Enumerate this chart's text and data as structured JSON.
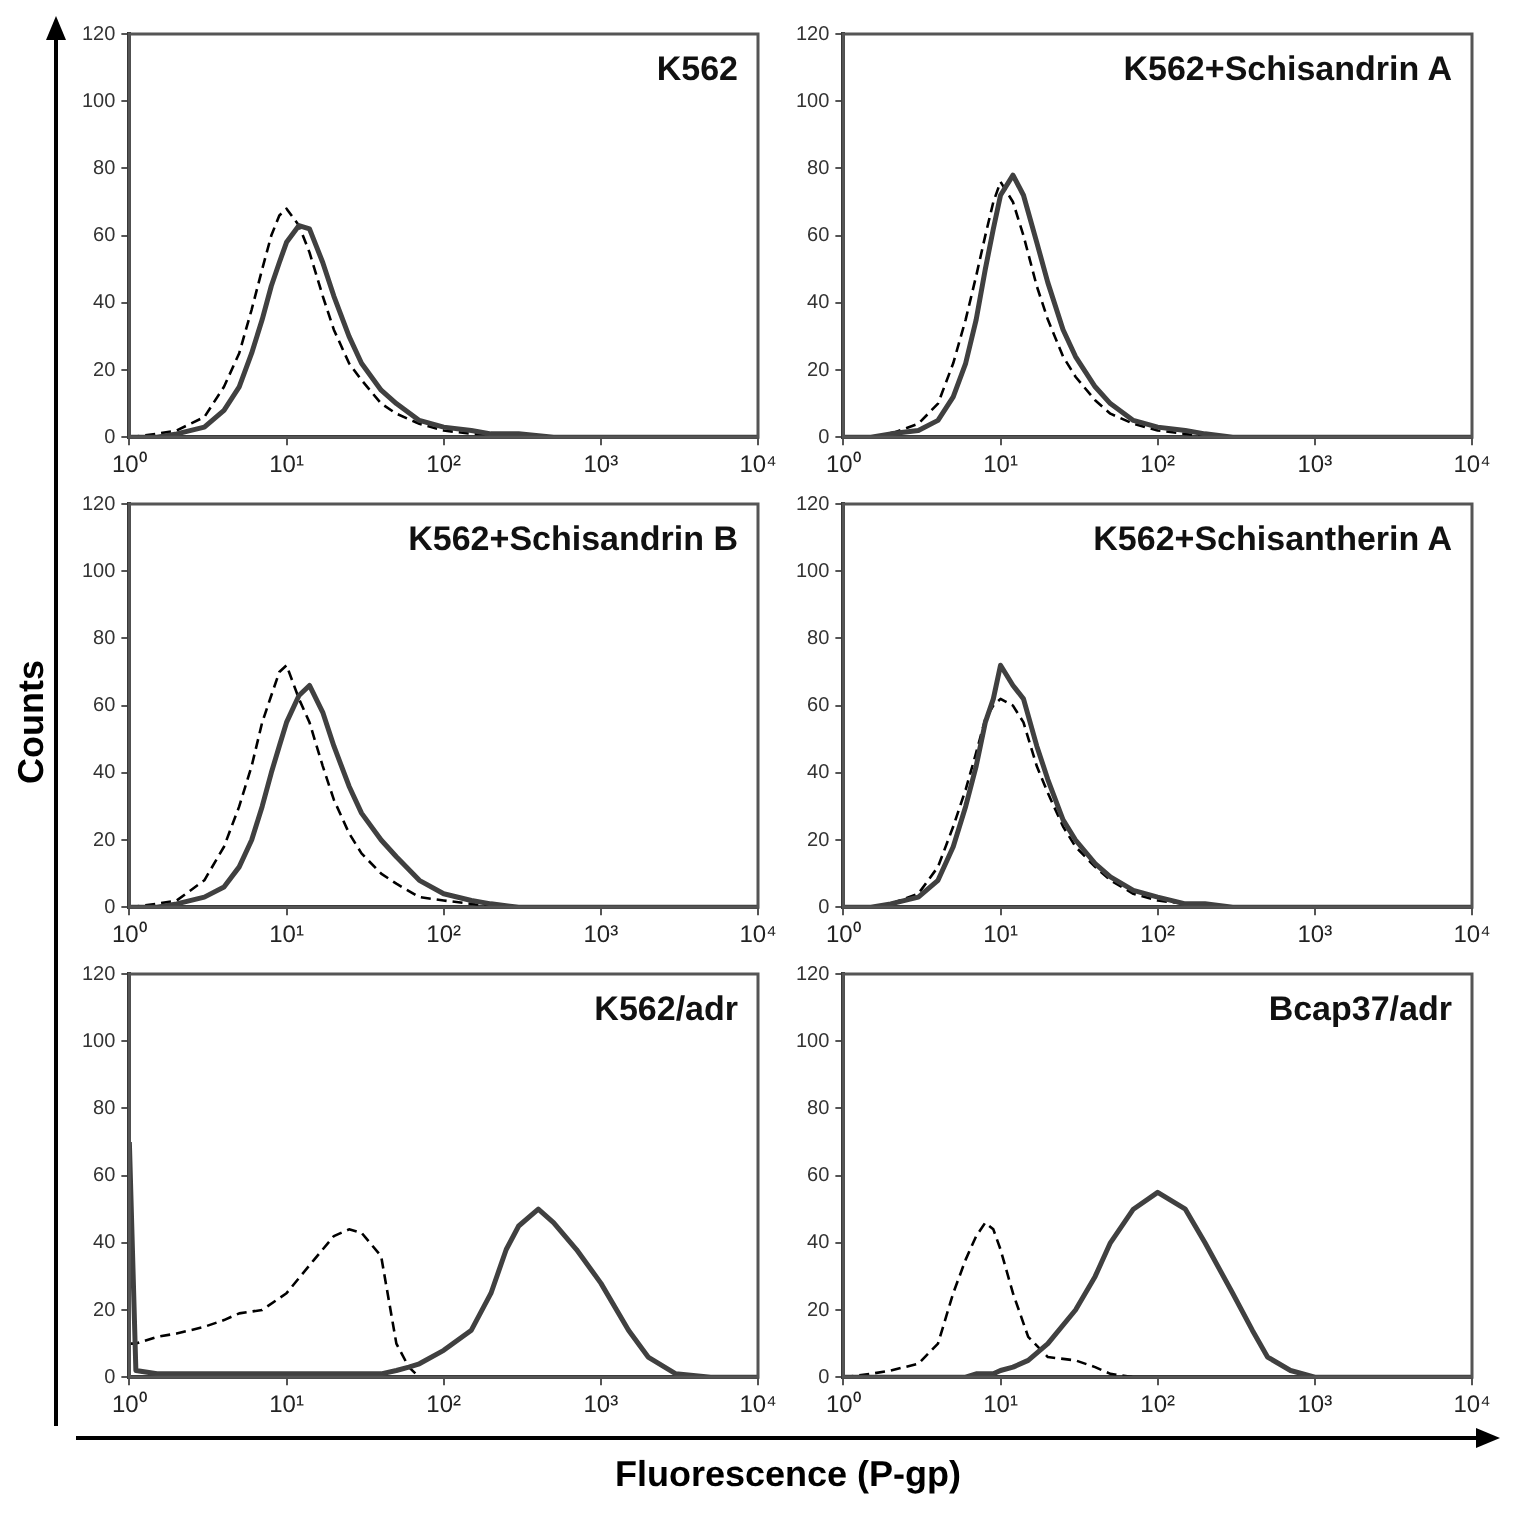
{
  "chart_data": [
    {
      "type": "line",
      "title": "K562",
      "x": [
        1,
        1.5,
        2,
        3,
        4,
        5,
        6,
        7,
        8,
        9,
        10,
        12,
        14,
        17,
        20,
        25,
        30,
        40,
        50,
        70,
        100,
        150,
        200,
        300,
        500,
        1000,
        2000,
        5000,
        10000
      ],
      "series": [
        {
          "color": "#404040",
          "line_style": "solid",
          "values": [
            0,
            0,
            1,
            3,
            8,
            15,
            25,
            35,
            45,
            52,
            58,
            63,
            62,
            52,
            42,
            30,
            22,
            14,
            10,
            5,
            3,
            2,
            1,
            1,
            0,
            0,
            0,
            0,
            0
          ]
        },
        {
          "color": "#000000",
          "line_style": "dashed",
          "values": [
            0,
            1,
            2,
            6,
            15,
            25,
            38,
            50,
            60,
            66,
            68,
            63,
            55,
            42,
            32,
            22,
            17,
            10,
            7,
            4,
            2,
            1,
            1,
            0,
            0,
            0,
            0,
            0,
            0
          ]
        }
      ],
      "xlim": [
        1,
        10000
      ],
      "xticks": [
        {
          "value": 1,
          "label": "10⁰"
        },
        {
          "value": 10,
          "label": "10¹"
        },
        {
          "value": 100,
          "label": "10²"
        },
        {
          "value": 1000,
          "label": "10³"
        },
        {
          "value": 10000,
          "label": "10⁴"
        }
      ],
      "ylim": [
        0,
        120
      ],
      "yticks": [
        0,
        20,
        40,
        60,
        80,
        100,
        120
      ],
      "log": "x",
      "grid": false,
      "legend": false
    },
    {
      "type": "line",
      "title": "K562+Schisandrin A",
      "x": [
        1,
        1.5,
        2,
        3,
        4,
        5,
        6,
        7,
        8,
        9,
        10,
        12,
        14,
        17,
        20,
        25,
        30,
        40,
        50,
        70,
        100,
        150,
        200,
        300,
        500,
        1000,
        2000,
        5000,
        10000
      ],
      "series": [
        {
          "color": "#404040",
          "line_style": "solid",
          "values": [
            0,
            0,
            1,
            2,
            5,
            12,
            22,
            35,
            50,
            62,
            72,
            78,
            72,
            58,
            46,
            32,
            24,
            15,
            10,
            5,
            3,
            2,
            1,
            0,
            0,
            0,
            0,
            0,
            0
          ]
        },
        {
          "color": "#000000",
          "line_style": "dashed",
          "values": [
            0,
            0,
            1,
            4,
            10,
            22,
            35,
            48,
            60,
            70,
            76,
            70,
            60,
            45,
            35,
            24,
            18,
            11,
            7,
            4,
            2,
            1,
            0,
            0,
            0,
            0,
            0,
            0,
            0
          ]
        }
      ],
      "xlim": [
        1,
        10000
      ],
      "xticks": [
        {
          "value": 1,
          "label": "10⁰"
        },
        {
          "value": 10,
          "label": "10¹"
        },
        {
          "value": 100,
          "label": "10²"
        },
        {
          "value": 1000,
          "label": "10³"
        },
        {
          "value": 10000,
          "label": "10⁴"
        }
      ],
      "ylim": [
        0,
        120
      ],
      "yticks": [
        0,
        20,
        40,
        60,
        80,
        100,
        120
      ],
      "log": "x",
      "grid": false,
      "legend": false
    },
    {
      "type": "line",
      "title": "K562+Schisandrin B",
      "ylabel": "Counts",
      "x": [
        1,
        1.5,
        2,
        3,
        4,
        5,
        6,
        7,
        8,
        9,
        10,
        12,
        14,
        17,
        20,
        25,
        30,
        40,
        50,
        70,
        100,
        150,
        200,
        300,
        500,
        1000,
        2000,
        5000,
        10000
      ],
      "series": [
        {
          "color": "#404040",
          "line_style": "solid",
          "values": [
            0,
            0,
            1,
            3,
            6,
            12,
            20,
            30,
            40,
            48,
            55,
            63,
            66,
            58,
            48,
            36,
            28,
            20,
            15,
            8,
            4,
            2,
            1,
            0,
            0,
            0,
            0,
            0,
            0
          ]
        },
        {
          "color": "#000000",
          "line_style": "dashed",
          "values": [
            0,
            1,
            2,
            8,
            18,
            30,
            42,
            55,
            63,
            70,
            72,
            62,
            55,
            42,
            32,
            22,
            16,
            10,
            7,
            3,
            2,
            1,
            0,
            0,
            0,
            0,
            0,
            0,
            0
          ]
        }
      ],
      "xlim": [
        1,
        10000
      ],
      "xticks": [
        {
          "value": 1,
          "label": "10⁰"
        },
        {
          "value": 10,
          "label": "10¹"
        },
        {
          "value": 100,
          "label": "10²"
        },
        {
          "value": 1000,
          "label": "10³"
        },
        {
          "value": 10000,
          "label": "10⁴"
        }
      ],
      "ylim": [
        0,
        120
      ],
      "yticks": [
        0,
        20,
        40,
        60,
        80,
        100,
        120
      ],
      "log": "x",
      "grid": false,
      "legend": false
    },
    {
      "type": "line",
      "title": "K562+Schisantherin A",
      "x": [
        1,
        1.5,
        2,
        3,
        4,
        5,
        6,
        7,
        8,
        9,
        10,
        12,
        14,
        17,
        20,
        25,
        30,
        40,
        50,
        70,
        100,
        150,
        200,
        300,
        500,
        1000,
        2000,
        5000,
        10000
      ],
      "series": [
        {
          "color": "#404040",
          "line_style": "solid",
          "values": [
            0,
            0,
            1,
            3,
            8,
            18,
            30,
            42,
            55,
            62,
            72,
            66,
            62,
            48,
            38,
            26,
            20,
            13,
            9,
            5,
            3,
            1,
            1,
            0,
            0,
            0,
            0,
            0,
            0
          ]
        },
        {
          "color": "#000000",
          "line_style": "dashed",
          "values": [
            0,
            0,
            1,
            4,
            12,
            24,
            35,
            46,
            56,
            60,
            62,
            60,
            55,
            42,
            34,
            24,
            18,
            12,
            8,
            4,
            2,
            1,
            0,
            0,
            0,
            0,
            0,
            0,
            0
          ]
        }
      ],
      "xlim": [
        1,
        10000
      ],
      "xticks": [
        {
          "value": 1,
          "label": "10⁰"
        },
        {
          "value": 10,
          "label": "10¹"
        },
        {
          "value": 100,
          "label": "10²"
        },
        {
          "value": 1000,
          "label": "10³"
        },
        {
          "value": 10000,
          "label": "10⁴"
        }
      ],
      "ylim": [
        0,
        120
      ],
      "yticks": [
        0,
        20,
        40,
        60,
        80,
        100,
        120
      ],
      "log": "x",
      "grid": false,
      "legend": false
    },
    {
      "type": "line",
      "title": "K562/adr",
      "xlabel": "Fluorescence (P-gp)",
      "x": [
        1,
        1.1,
        1.5,
        2,
        3,
        4,
        5,
        7,
        10,
        15,
        20,
        25,
        30,
        40,
        50,
        60,
        70,
        100,
        150,
        200,
        250,
        300,
        400,
        500,
        700,
        1000,
        1500,
        2000,
        3000,
        5000,
        10000
      ],
      "series": [
        {
          "color": "#404040",
          "line_style": "solid",
          "values": [
            70,
            2,
            1,
            1,
            1,
            1,
            1,
            1,
            1,
            1,
            1,
            1,
            1,
            1,
            2,
            3,
            4,
            8,
            14,
            25,
            38,
            45,
            50,
            46,
            38,
            28,
            14,
            6,
            1,
            0,
            0
          ]
        },
        {
          "color": "#000000",
          "line_style": "dashed",
          "values": [
            10,
            10,
            12,
            13,
            15,
            17,
            19,
            20,
            25,
            35,
            42,
            44,
            43,
            36,
            10,
            3,
            0,
            0,
            0,
            0,
            0,
            0,
            0,
            0,
            0,
            0,
            0,
            0,
            0,
            0,
            0
          ]
        }
      ],
      "xlim": [
        1,
        10000
      ],
      "xticks": [
        {
          "value": 1,
          "label": "10⁰"
        },
        {
          "value": 10,
          "label": "10¹"
        },
        {
          "value": 100,
          "label": "10²"
        },
        {
          "value": 1000,
          "label": "10³"
        },
        {
          "value": 10000,
          "label": "10⁴"
        }
      ],
      "ylim": [
        0,
        120
      ],
      "yticks": [
        0,
        20,
        40,
        60,
        80,
        100,
        120
      ],
      "log": "x",
      "grid": false,
      "legend": false
    },
    {
      "type": "line",
      "title": "Bcap37/adr",
      "x": [
        1,
        1.5,
        2,
        3,
        4,
        5,
        6,
        7,
        8,
        9,
        10,
        12,
        15,
        20,
        30,
        40,
        50,
        70,
        100,
        150,
        200,
        300,
        400,
        500,
        700,
        1000,
        2000,
        5000,
        10000
      ],
      "series": [
        {
          "color": "#404040",
          "line_style": "solid",
          "values": [
            0,
            0,
            0,
            0,
            0,
            0,
            0,
            1,
            1,
            1,
            2,
            3,
            5,
            10,
            20,
            30,
            40,
            50,
            55,
            50,
            40,
            25,
            14,
            6,
            2,
            0,
            0,
            0,
            0
          ]
        },
        {
          "color": "#000000",
          "line_style": "dashed",
          "values": [
            0,
            1,
            2,
            4,
            10,
            25,
            35,
            42,
            46,
            44,
            38,
            25,
            12,
            6,
            5,
            3,
            1,
            0,
            0,
            0,
            0,
            0,
            0,
            0,
            0,
            0,
            0,
            0,
            0
          ]
        }
      ],
      "xlim": [
        1,
        10000
      ],
      "xticks": [
        {
          "value": 1,
          "label": "10⁰"
        },
        {
          "value": 10,
          "label": "10¹"
        },
        {
          "value": 100,
          "label": "10²"
        },
        {
          "value": 1000,
          "label": "10³"
        },
        {
          "value": 10000,
          "label": "10⁴"
        }
      ],
      "ylim": [
        0,
        120
      ],
      "yticks": [
        0,
        20,
        40,
        60,
        80,
        100,
        120
      ],
      "log": "x",
      "grid": false,
      "legend": false
    }
  ]
}
